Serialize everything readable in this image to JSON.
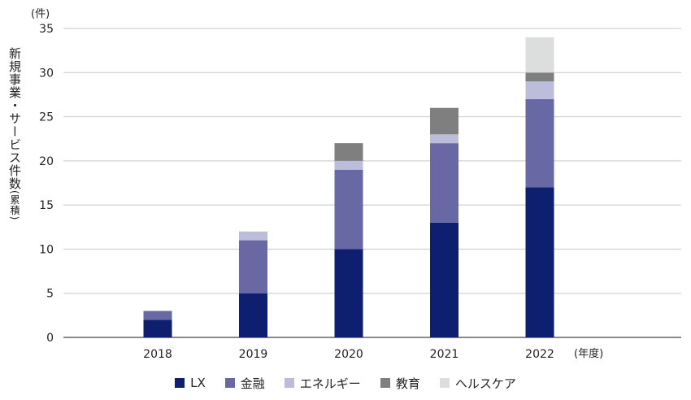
{
  "chart_data": {
    "type": "bar",
    "stacked": true,
    "y_unit": "(件)",
    "x_unit": "(年度)",
    "ylabel_main": "新規事業・サービス件数",
    "ylabel_suffix": "(累積)",
    "categories": [
      "2018",
      "2019",
      "2020",
      "2021",
      "2022"
    ],
    "ylim": [
      0,
      35
    ],
    "yticks": [
      0,
      5,
      10,
      15,
      20,
      25,
      30,
      35
    ],
    "grid": true,
    "legend_position": "bottom",
    "series": [
      {
        "name": "LX",
        "color": "#0d1f6e",
        "values": [
          2,
          5,
          10,
          13,
          17
        ]
      },
      {
        "name": "金融",
        "color": "#6768a4",
        "values": [
          1,
          6,
          9,
          9,
          10
        ]
      },
      {
        "name": "エネルギー",
        "color": "#bcbcdb",
        "values": [
          0,
          1,
          1,
          1,
          2
        ]
      },
      {
        "name": "教育",
        "color": "#7f7f7f",
        "values": [
          0,
          0,
          2,
          3,
          1
        ]
      },
      {
        "name": "ヘルスケア",
        "color": "#dcdddd",
        "values": [
          0,
          0,
          0,
          0,
          4
        ]
      }
    ]
  }
}
